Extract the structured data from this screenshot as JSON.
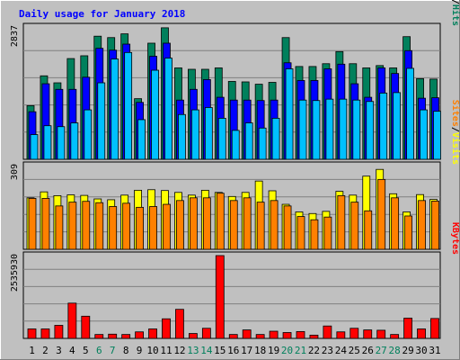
{
  "title": "Daily usage for January 2018",
  "colors": {
    "background": "#c0c0c0",
    "plot": "#c0c0c0",
    "title": "#0000ff",
    "hits": "#00805c",
    "files": "#0000ff",
    "pages": "#00c0ff",
    "visits": "#ffff00",
    "sites": "#ff8000",
    "kbytes": "#ff0000",
    "weekend": "#00805c",
    "weekday": "#000000"
  },
  "chart_data": [
    {
      "type": "bar",
      "panel": "hits-files-pages",
      "ymax_label": "2837",
      "ylim": [
        0,
        2837
      ],
      "legend": [
        {
          "label": "Hits",
          "color": "#00805c"
        },
        {
          "label": "/",
          "color": "#000000"
        },
        {
          "label": "Files",
          "color": "#0000ff"
        },
        {
          "label": "/",
          "color": "#000000"
        },
        {
          "label": "Pages",
          "color": "#00c0ff"
        }
      ],
      "categories": [
        "1",
        "2",
        "3",
        "4",
        "5",
        "6",
        "7",
        "8",
        "9",
        "10",
        "11",
        "12",
        "13",
        "14",
        "15",
        "16",
        "17",
        "18",
        "19",
        "20",
        "21",
        "22",
        "23",
        "24",
        "25",
        "26",
        "27",
        "28",
        "29",
        "30",
        "31"
      ],
      "weekend_days": [
        "6",
        "7",
        "13",
        "14",
        "20",
        "21",
        "27",
        "28"
      ],
      "series": [
        {
          "name": "Hits",
          "values": [
            1150,
            1790,
            1640,
            2160,
            2220,
            2640,
            2610,
            2690,
            1300,
            2490,
            2820,
            1960,
            1930,
            1930,
            1960,
            1670,
            1660,
            1610,
            1650,
            2610,
            1990,
            1990,
            2050,
            2310,
            2050,
            1960,
            2010,
            1960,
            2630,
            1730,
            1720
          ]
        },
        {
          "name": "Files",
          "values": [
            1020,
            1620,
            1500,
            1500,
            1760,
            2380,
            2340,
            2470,
            1220,
            2210,
            2490,
            1270,
            1500,
            1710,
            1330,
            1270,
            1270,
            1260,
            1270,
            2070,
            1690,
            1690,
            1940,
            2040,
            1620,
            1330,
            1960,
            1840,
            2330,
            1310,
            1320
          ]
        },
        {
          "name": "Pages",
          "values": [
            530,
            720,
            700,
            780,
            1060,
            1640,
            2150,
            2290,
            850,
            1910,
            2170,
            960,
            1060,
            1110,
            880,
            620,
            780,
            670,
            880,
            1940,
            1270,
            1260,
            1290,
            1290,
            1270,
            1240,
            1420,
            1430,
            1950,
            1060,
            1030
          ]
        }
      ]
    },
    {
      "type": "bar",
      "panel": "visits-sites",
      "ymax_label": "309",
      "ylim": [
        0,
        309
      ],
      "legend": [
        {
          "label": "Visits",
          "color": "#ffff00"
        },
        {
          "label": "/",
          "color": "#000000"
        },
        {
          "label": "Sites",
          "color": "#ff8000"
        }
      ],
      "categories": [
        "1",
        "2",
        "3",
        "4",
        "5",
        "6",
        "7",
        "8",
        "9",
        "10",
        "11",
        "12",
        "13",
        "14",
        "15",
        "16",
        "17",
        "18",
        "19",
        "20",
        "21",
        "22",
        "23",
        "24",
        "25",
        "26",
        "27",
        "28",
        "29",
        "30",
        "31"
      ],
      "series": [
        {
          "name": "Visits",
          "values": [
            190,
            212,
            198,
            201,
            199,
            186,
            183,
            200,
            218,
            220,
            217,
            210,
            200,
            218,
            210,
            195,
            210,
            252,
            216,
            166,
            138,
            132,
            140,
            214,
            200,
            270,
            295,
            205,
            138,
            202,
            184
          ]
        },
        {
          "name": "Sites",
          "values": [
            188,
            188,
            160,
            174,
            177,
            172,
            158,
            170,
            155,
            158,
            166,
            180,
            190,
            190,
            207,
            180,
            190,
            174,
            180,
            160,
            121,
            109,
            119,
            198,
            174,
            142,
            258,
            190,
            123,
            180,
            178
          ]
        }
      ]
    },
    {
      "type": "bar",
      "panel": "kbytes",
      "ymax_label": "2535930",
      "ylim": [
        0,
        2535930
      ],
      "legend": [
        {
          "label": "KBytes",
          "color": "#ff0000"
        }
      ],
      "categories": [
        "1",
        "2",
        "3",
        "4",
        "5",
        "6",
        "7",
        "8",
        "9",
        "10",
        "11",
        "12",
        "13",
        "14",
        "15",
        "16",
        "17",
        "18",
        "19",
        "20",
        "21",
        "22",
        "23",
        "24",
        "25",
        "26",
        "27",
        "28",
        "29",
        "30",
        "31"
      ],
      "series": [
        {
          "name": "KBytes",
          "values": [
            290000,
            290000,
            400000,
            1080000,
            680000,
            120000,
            130000,
            120000,
            200000,
            290000,
            600000,
            890000,
            150000,
            310000,
            2535930,
            120000,
            260000,
            120000,
            220000,
            180000,
            210000,
            100000,
            380000,
            200000,
            310000,
            260000,
            250000,
            120000,
            620000,
            290000,
            610000
          ]
        }
      ]
    }
  ]
}
